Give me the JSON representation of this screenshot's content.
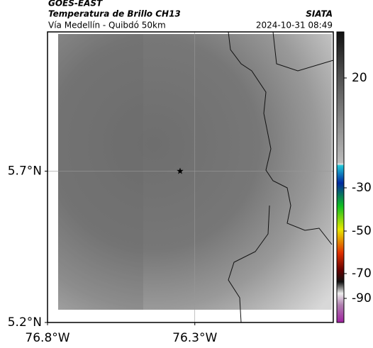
{
  "header": {
    "source": "GOES-EAST",
    "product": "Temperatura de Brillo CH13",
    "agency": "SIATA",
    "region": "Vía Medellín - Quibdó 50km",
    "datetime": "2024-10-31 08:49"
  },
  "map": {
    "xlim": [
      -76.8,
      -75.83
    ],
    "ylim": [
      5.2,
      6.16
    ],
    "xticks": [
      {
        "value": -76.8,
        "label": "76.8°W"
      },
      {
        "value": -76.3,
        "label": "76.3°W"
      }
    ],
    "yticks": [
      {
        "value": 5.2,
        "label": "5.2°N"
      },
      {
        "value": 5.7,
        "label": "5.7°N"
      }
    ],
    "grid": true,
    "marker": {
      "lon": -76.35,
      "lat": 5.7
    }
  },
  "colorbar": {
    "ticks": [
      20,
      -30,
      -50,
      -70,
      -90
    ]
  }
}
